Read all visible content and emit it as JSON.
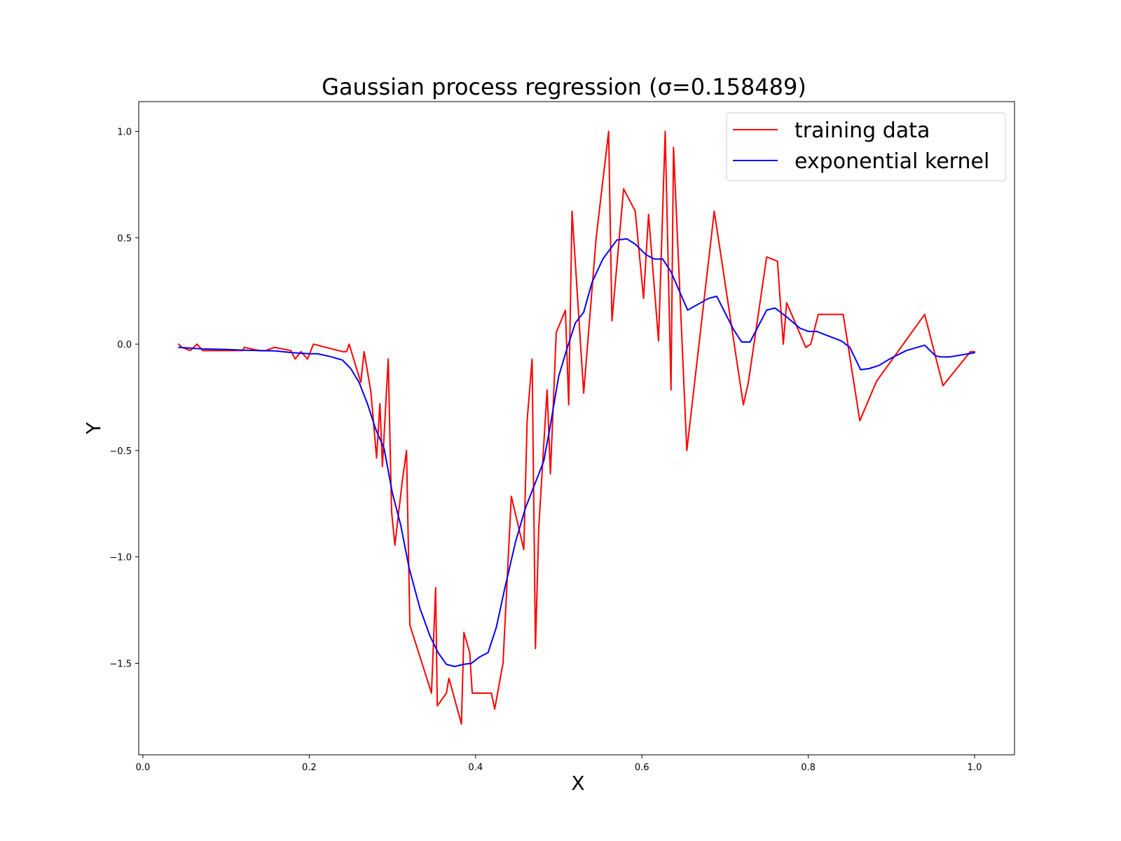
{
  "chart_data": {
    "type": "line",
    "title": "Gaussian process regression (σ=0.158489)",
    "xlabel": "X",
    "ylabel": "Y",
    "xlim": [
      -0.005,
      1.048
    ],
    "ylim": [
      -1.93,
      1.14
    ],
    "x_ticks": [
      0.0,
      0.2,
      0.4,
      0.6,
      0.8,
      1.0
    ],
    "x_tick_labels": [
      "0.0",
      "0.2",
      "0.4",
      "0.6",
      "0.8",
      "1.0"
    ],
    "y_ticks": [
      -1.5,
      -1.0,
      -0.5,
      0.0,
      0.5,
      1.0
    ],
    "y_tick_labels": [
      "−1.5",
      "−1.0",
      "−0.5",
      "0.0",
      "0.5",
      "1.0"
    ],
    "grid": false,
    "legend_position": "top-right",
    "series": [
      {
        "name": "training data",
        "color": "#ff0000",
        "points": [
          [
            0.043,
            0.0
          ],
          [
            0.047,
            -0.015
          ],
          [
            0.057,
            -0.03
          ],
          [
            0.065,
            0.0
          ],
          [
            0.072,
            -0.03
          ],
          [
            0.12,
            -0.03
          ],
          [
            0.122,
            -0.015
          ],
          [
            0.14,
            -0.03
          ],
          [
            0.148,
            -0.03
          ],
          [
            0.158,
            -0.015
          ],
          [
            0.178,
            -0.03
          ],
          [
            0.183,
            -0.07
          ],
          [
            0.19,
            -0.035
          ],
          [
            0.198,
            -0.07
          ],
          [
            0.205,
            0.0
          ],
          [
            0.24,
            -0.035
          ],
          [
            0.245,
            -0.035
          ],
          [
            0.248,
            0.0
          ],
          [
            0.262,
            -0.18
          ],
          [
            0.266,
            -0.035
          ],
          [
            0.274,
            -0.22
          ],
          [
            0.281,
            -0.535
          ],
          [
            0.285,
            -0.28
          ],
          [
            0.288,
            -0.575
          ],
          [
            0.295,
            -0.07
          ],
          [
            0.299,
            -0.785
          ],
          [
            0.303,
            -0.945
          ],
          [
            0.312,
            -0.64
          ],
          [
            0.317,
            -0.5
          ],
          [
            0.321,
            -1.32
          ],
          [
            0.347,
            -1.64
          ],
          [
            0.352,
            -1.145
          ],
          [
            0.354,
            -1.7
          ],
          [
            0.365,
            -1.64
          ],
          [
            0.368,
            -1.57
          ],
          [
            0.383,
            -1.785
          ],
          [
            0.386,
            -1.355
          ],
          [
            0.393,
            -1.45
          ],
          [
            0.396,
            -1.64
          ],
          [
            0.419,
            -1.64
          ],
          [
            0.423,
            -1.715
          ],
          [
            0.433,
            -1.5
          ],
          [
            0.443,
            -0.715
          ],
          [
            0.458,
            -0.965
          ],
          [
            0.462,
            -0.36
          ],
          [
            0.468,
            -0.07
          ],
          [
            0.472,
            -1.43
          ],
          [
            0.476,
            -0.86
          ],
          [
            0.486,
            -0.215
          ],
          [
            0.49,
            -0.61
          ],
          [
            0.497,
            0.055
          ],
          [
            0.508,
            0.16
          ],
          [
            0.512,
            -0.285
          ],
          [
            0.516,
            0.625
          ],
          [
            0.53,
            -0.23
          ],
          [
            0.545,
            0.5
          ],
          [
            0.56,
            1.0
          ],
          [
            0.564,
            0.11
          ],
          [
            0.578,
            0.73
          ],
          [
            0.592,
            0.625
          ],
          [
            0.602,
            0.215
          ],
          [
            0.608,
            0.61
          ],
          [
            0.62,
            0.015
          ],
          [
            0.628,
            1.0
          ],
          [
            0.635,
            -0.215
          ],
          [
            0.638,
            0.925
          ],
          [
            0.654,
            -0.5
          ],
          [
            0.687,
            0.625
          ],
          [
            0.722,
            -0.285
          ],
          [
            0.728,
            -0.18
          ],
          [
            0.75,
            0.41
          ],
          [
            0.763,
            0.39
          ],
          [
            0.77,
            0.0
          ],
          [
            0.774,
            0.195
          ],
          [
            0.797,
            -0.015
          ],
          [
            0.803,
            0.0
          ],
          [
            0.812,
            0.14
          ],
          [
            0.84,
            0.14
          ],
          [
            0.842,
            0.14
          ],
          [
            0.862,
            -0.36
          ],
          [
            0.882,
            -0.175
          ],
          [
            0.94,
            0.14
          ],
          [
            0.962,
            -0.195
          ],
          [
            0.995,
            -0.035
          ],
          [
            1.0,
            -0.035
          ]
        ]
      },
      {
        "name": "exponential kernel",
        "color": "#0000ff",
        "points": [
          [
            0.043,
            -0.015
          ],
          [
            0.07,
            -0.022
          ],
          [
            0.1,
            -0.025
          ],
          [
            0.12,
            -0.028
          ],
          [
            0.14,
            -0.03
          ],
          [
            0.16,
            -0.032
          ],
          [
            0.18,
            -0.04
          ],
          [
            0.2,
            -0.045
          ],
          [
            0.21,
            -0.045
          ],
          [
            0.225,
            -0.058
          ],
          [
            0.24,
            -0.075
          ],
          [
            0.25,
            -0.115
          ],
          [
            0.26,
            -0.18
          ],
          [
            0.27,
            -0.28
          ],
          [
            0.28,
            -0.4
          ],
          [
            0.29,
            -0.49
          ],
          [
            0.3,
            -0.7
          ],
          [
            0.31,
            -0.85
          ],
          [
            0.32,
            -1.05
          ],
          [
            0.333,
            -1.24
          ],
          [
            0.345,
            -1.37
          ],
          [
            0.355,
            -1.45
          ],
          [
            0.365,
            -1.505
          ],
          [
            0.375,
            -1.515
          ],
          [
            0.385,
            -1.505
          ],
          [
            0.395,
            -1.5
          ],
          [
            0.405,
            -1.47
          ],
          [
            0.415,
            -1.45
          ],
          [
            0.425,
            -1.33
          ],
          [
            0.435,
            -1.15
          ],
          [
            0.448,
            -0.93
          ],
          [
            0.46,
            -0.77
          ],
          [
            0.472,
            -0.65
          ],
          [
            0.482,
            -0.55
          ],
          [
            0.49,
            -0.38
          ],
          [
            0.5,
            -0.15
          ],
          [
            0.51,
            -0.02
          ],
          [
            0.52,
            0.1
          ],
          [
            0.53,
            0.15
          ],
          [
            0.54,
            0.29
          ],
          [
            0.553,
            0.4
          ],
          [
            0.57,
            0.49
          ],
          [
            0.582,
            0.495
          ],
          [
            0.592,
            0.47
          ],
          [
            0.605,
            0.42
          ],
          [
            0.615,
            0.4
          ],
          [
            0.625,
            0.4
          ],
          [
            0.635,
            0.34
          ],
          [
            0.645,
            0.25
          ],
          [
            0.655,
            0.16
          ],
          [
            0.68,
            0.215
          ],
          [
            0.69,
            0.225
          ],
          [
            0.71,
            0.07
          ],
          [
            0.72,
            0.01
          ],
          [
            0.73,
            0.01
          ],
          [
            0.75,
            0.16
          ],
          [
            0.76,
            0.17
          ],
          [
            0.775,
            0.125
          ],
          [
            0.79,
            0.075
          ],
          [
            0.8,
            0.06
          ],
          [
            0.81,
            0.06
          ],
          [
            0.82,
            0.045
          ],
          [
            0.84,
            0.015
          ],
          [
            0.85,
            -0.015
          ],
          [
            0.863,
            -0.12
          ],
          [
            0.873,
            -0.115
          ],
          [
            0.885,
            -0.1
          ],
          [
            0.9,
            -0.065
          ],
          [
            0.918,
            -0.03
          ],
          [
            0.94,
            -0.005
          ],
          [
            0.953,
            -0.055
          ],
          [
            0.96,
            -0.06
          ],
          [
            0.97,
            -0.06
          ],
          [
            1.0,
            -0.04
          ]
        ]
      }
    ]
  }
}
